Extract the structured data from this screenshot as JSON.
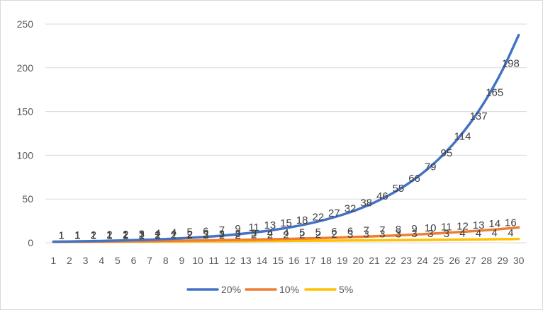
{
  "chart_data": {
    "type": "line",
    "title": "",
    "xlabel": "",
    "ylabel": "",
    "x": [
      1,
      2,
      3,
      4,
      5,
      6,
      7,
      8,
      9,
      10,
      11,
      12,
      13,
      14,
      15,
      16,
      17,
      18,
      19,
      20,
      21,
      22,
      23,
      24,
      25,
      26,
      27,
      28,
      29,
      30
    ],
    "ylim": [
      0,
      250
    ],
    "yticks": [
      0,
      50,
      100,
      150,
      200,
      250
    ],
    "grid": true,
    "legend_position": "bottom",
    "series": [
      {
        "name": "20%",
        "color": "#4472C4",
        "values": [
          1.2,
          1.44,
          1.73,
          2.07,
          2.49,
          2.99,
          3.58,
          4.3,
          5.16,
          6.19,
          7.43,
          8.92,
          10.7,
          12.84,
          15.41,
          18.49,
          22.19,
          26.62,
          31.95,
          38.34,
          46.01,
          55.21,
          66.25,
          79.5,
          95.4,
          114.48,
          137.37,
          164.84,
          197.81,
          237.38
        ],
        "labels": [
          "1",
          "1",
          "2",
          "2",
          "2",
          "3",
          "4",
          "4",
          "5",
          "6",
          "7",
          "9",
          "11",
          "13",
          "15",
          "18",
          "22",
          "27",
          "32",
          "38",
          "46",
          "55",
          "66",
          "79",
          "95",
          "114",
          "137",
          "165",
          "198",
          ""
        ]
      },
      {
        "name": "10%",
        "color": "#ED7D31",
        "values": [
          1.1,
          1.21,
          1.33,
          1.46,
          1.61,
          1.77,
          1.95,
          2.14,
          2.36,
          2.59,
          2.85,
          3.14,
          3.45,
          3.8,
          4.18,
          4.59,
          5.05,
          5.56,
          6.12,
          6.73,
          7.4,
          8.14,
          8.95,
          9.85,
          10.83,
          11.92,
          13.11,
          14.42,
          15.86,
          17.45
        ],
        "labels": [
          "1",
          "1",
          "1",
          "1",
          "2",
          "2",
          "2",
          "2",
          "2",
          "3",
          "3",
          "3",
          "3",
          "4",
          "4",
          "5",
          "5",
          "6",
          "6",
          "7",
          "7",
          "8",
          "9",
          "10",
          "11",
          "12",
          "13",
          "14",
          "16",
          ""
        ]
      },
      {
        "name": "5%",
        "color": "#FFC000",
        "values": [
          1.05,
          1.1,
          1.16,
          1.22,
          1.28,
          1.34,
          1.41,
          1.48,
          1.55,
          1.63,
          1.71,
          1.8,
          1.89,
          1.98,
          2.08,
          2.18,
          2.29,
          2.41,
          2.53,
          2.65,
          2.79,
          2.93,
          3.07,
          3.23,
          3.39,
          3.56,
          3.73,
          3.92,
          4.12,
          4.32
        ],
        "labels": [
          "1",
          "1",
          "1",
          "1",
          "1",
          "1",
          "1",
          "1",
          "2",
          "2",
          "2",
          "2",
          "2",
          "2",
          "2",
          "2",
          "2",
          "2",
          "3",
          "3",
          "3",
          "3",
          "3",
          "3",
          "3",
          "4",
          "4",
          "4",
          "4",
          ""
        ]
      }
    ]
  }
}
